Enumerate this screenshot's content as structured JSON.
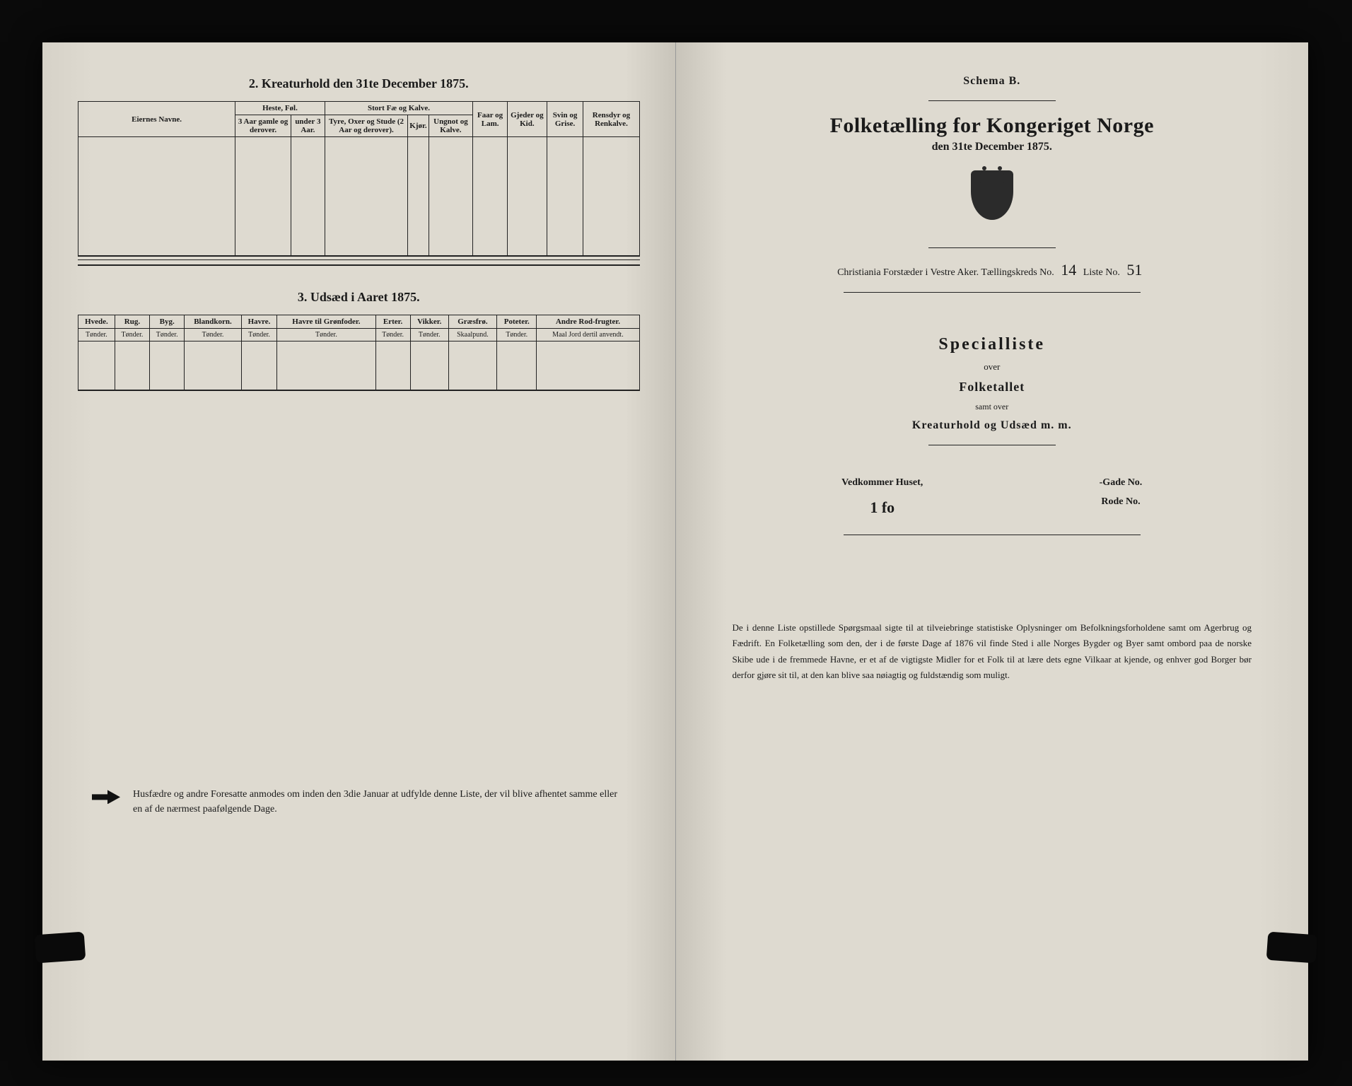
{
  "left": {
    "section2_title": "2. Kreaturhold den 31te December 1875.",
    "table1": {
      "owner_header": "Eiernes Navne.",
      "groups": [
        {
          "label": "Heste, Føl.",
          "subs": [
            "3 Aar gamle og derover.",
            "under 3 Aar."
          ]
        },
        {
          "label": "Stort Fæ og Kalve.",
          "subs": [
            "Tyre, Oxer og Stude (2 Aar og derover).",
            "Kjør.",
            "Ungnot og Kalve."
          ]
        }
      ],
      "singles": [
        "Faar og Lam.",
        "Gjeder og Kid.",
        "Svin og Grise.",
        "Rensdyr og Renkalve."
      ],
      "row_count": 6
    },
    "section3_title": "3. Udsæd i Aaret 1875.",
    "table2": {
      "columns": [
        {
          "h": "Hvede.",
          "u": "Tønder."
        },
        {
          "h": "Rug.",
          "u": "Tønder."
        },
        {
          "h": "Byg.",
          "u": "Tønder."
        },
        {
          "h": "Blandkorn.",
          "u": "Tønder."
        },
        {
          "h": "Havre.",
          "u": "Tønder."
        },
        {
          "h": "Havre til Grønfoder.",
          "u": "Tønder."
        },
        {
          "h": "Erter.",
          "u": "Tønder."
        },
        {
          "h": "Vikker.",
          "u": "Tønder."
        },
        {
          "h": "Græsfrø.",
          "u": "Skaalpund."
        },
        {
          "h": "Poteter.",
          "u": "Tønder."
        },
        {
          "h": "Andre Rod-frugter.",
          "u": "Maal Jord dertil anvendt."
        }
      ]
    },
    "footnote": "Husfædre og andre Foresatte anmodes om inden den 3die Januar at udfylde denne Liste, der vil blive afhentet samme eller en af de nærmest paafølgende Dage."
  },
  "right": {
    "schema": "Schema B.",
    "title": "Folketælling for Kongeriget Norge",
    "date": "den 31te December 1875.",
    "meta_prefix": "Christiania Forstæder i Vestre Aker.   Tællingskreds No.",
    "kreds_no": "14",
    "liste_label": "Liste No.",
    "liste_no": "51",
    "special": "Specialliste",
    "over": "over",
    "folket": "Folketallet",
    "samt": "samt over",
    "kreatur": "Kreaturhold og Udsæd m. m.",
    "vedkommer": "Vedkommer Huset,",
    "house_no": "1 fo",
    "gade": "-Gade No.",
    "rode": "Rode No.",
    "paragraph": "De i denne Liste opstillede Spørgsmaal sigte til at tilveiebringe statistiske Oplysninger om Befolkningsforholdene samt om Agerbrug og Fædrift. En Folketælling som den, der i de første Dage af 1876 vil finde Sted i alle Norges Bygder og Byer samt ombord paa de norske Skibe ude i de fremmede Havne, er et af de vigtigste Midler for et Folk til at lære dets egne Vilkaar at kjende, og enhver god Borger bør derfor gjøre sit til, at den kan blive saa nøiagtig og fuldstændig som muligt."
  }
}
